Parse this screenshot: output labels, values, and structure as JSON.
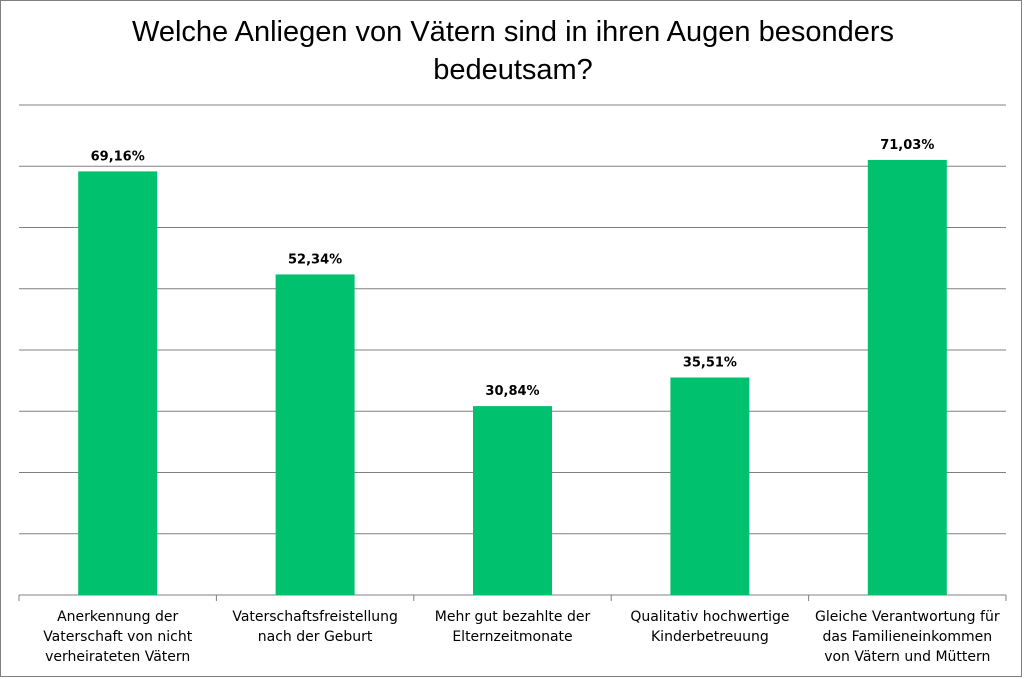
{
  "chart_data": {
    "type": "bar",
    "title": "Welche Anliegen von Vätern sind in ihren Augen besonders\nbedeutsam?",
    "categories": [
      "Anerkennung der Vaterschaft von nicht verheirateten Vätern",
      "Vaterschaftsfreistellung nach der Geburt",
      "Mehr gut bezahlte der Elternzeitmonate",
      "Qualitativ hochwertige Kinderbetreuung",
      "Gleiche Verantwortung für das Familieneinkommen von Vätern und Müttern"
    ],
    "values": [
      69.16,
      52.34,
      30.84,
      35.51,
      71.03
    ],
    "data_labels": [
      "69,16%",
      "52,34%",
      "30,84%",
      "35,51%",
      "71,03%"
    ],
    "ylim": [
      0,
      80
    ],
    "gridlines": 8,
    "grid": true,
    "legend": "none",
    "colors": {
      "bar": "#00C16E",
      "grid": "#808080",
      "axis": "#808080"
    }
  }
}
